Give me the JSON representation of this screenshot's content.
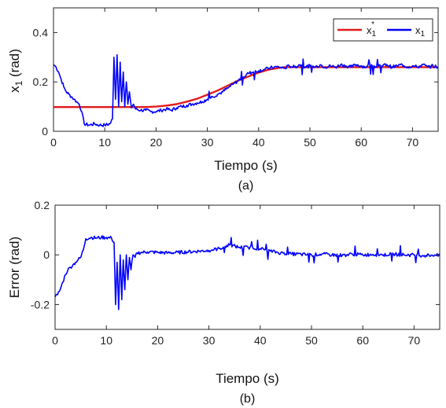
{
  "colors": {
    "reference": "#e31a1c",
    "measured": "#0000ff",
    "axis": "#262626",
    "grid": "#e6e6e6"
  },
  "chart_data": [
    {
      "id": "a",
      "type": "line",
      "caption": "(a)",
      "xlabel": "Tiempo (s)",
      "ylabel_main": "x",
      "ylabel_sub": "1",
      "ylabel_unit": " (rad)",
      "xlim": [
        0,
        75
      ],
      "ylim": [
        0,
        0.5
      ],
      "xticks": [
        0,
        10,
        20,
        30,
        40,
        50,
        60,
        70
      ],
      "xtick_labels": [
        "0",
        "10",
        "20",
        "30",
        "40",
        "50",
        "60",
        "70"
      ],
      "yticks": [
        0,
        0.2,
        0.4
      ],
      "ytick_labels": [
        "0",
        "0.2",
        "0.4"
      ],
      "grid": false,
      "legend_position": "top-right",
      "legend": [
        {
          "main": "x",
          "sub": "1",
          "sup": "*",
          "color_key": "reference"
        },
        {
          "main": "x",
          "sub": "1",
          "sup": "",
          "color_key": "measured"
        }
      ],
      "series": [
        {
          "color_key": "reference",
          "x": [
            0,
            18,
            20,
            22,
            24,
            26,
            28,
            30,
            32,
            34,
            36,
            38,
            40,
            42,
            44,
            45,
            46,
            75
          ],
          "y": [
            0.098,
            0.098,
            0.1,
            0.104,
            0.11,
            0.12,
            0.132,
            0.148,
            0.165,
            0.185,
            0.205,
            0.222,
            0.238,
            0.25,
            0.257,
            0.26,
            0.26,
            0.26
          ]
        },
        {
          "color_key": "measured",
          "x": [
            0,
            0.5,
            1,
            1.5,
            2,
            2.5,
            3,
            3.5,
            4,
            4.5,
            5,
            5.5,
            6,
            7,
            8,
            9,
            10,
            11,
            11.5,
            11.8,
            12.1,
            12.4,
            12.7,
            13.0,
            13.3,
            13.6,
            13.9,
            14.2,
            14.5,
            14.8,
            15.2,
            15.6,
            16,
            17,
            18,
            19,
            20,
            21,
            22,
            23,
            24,
            25,
            26,
            27,
            28,
            29,
            30,
            31,
            32,
            33,
            34,
            35,
            36,
            37,
            38,
            39,
            40,
            41,
            42,
            43,
            44,
            45,
            46,
            47,
            48,
            49,
            50,
            51,
            52,
            53,
            54,
            55,
            56,
            57,
            58,
            59,
            60,
            61,
            62,
            63,
            64,
            65,
            66,
            67,
            68,
            69,
            70,
            71,
            72,
            73,
            74,
            75
          ],
          "y": [
            0.27,
            0.26,
            0.24,
            0.21,
            0.18,
            0.16,
            0.15,
            0.14,
            0.13,
            0.12,
            0.11,
            0.08,
            0.03,
            0.025,
            0.03,
            0.025,
            0.025,
            0.03,
            0.05,
            0.3,
            0.13,
            0.31,
            0.1,
            0.28,
            0.12,
            0.24,
            0.1,
            0.2,
            0.11,
            0.16,
            0.095,
            0.11,
            0.09,
            0.085,
            0.085,
            0.08,
            0.08,
            0.085,
            0.09,
            0.085,
            0.095,
            0.1,
            0.105,
            0.11,
            0.115,
            0.12,
            0.13,
            0.14,
            0.15,
            0.16,
            0.175,
            0.19,
            0.205,
            0.22,
            0.235,
            0.24,
            0.245,
            0.25,
            0.255,
            0.26,
            0.26,
            0.255,
            0.265,
            0.26,
            0.27,
            0.26,
            0.265,
            0.26,
            0.27,
            0.26,
            0.265,
            0.26,
            0.27,
            0.265,
            0.26,
            0.27,
            0.265,
            0.26,
            0.27,
            0.26,
            0.265,
            0.27,
            0.26,
            0.265,
            0.27,
            0.26,
            0.265,
            0.26,
            0.27,
            0.26,
            0.265,
            0.26
          ]
        }
      ]
    },
    {
      "id": "b",
      "type": "line",
      "caption": "(b)",
      "xlabel": "Tiempo (s)",
      "ylabel_main": "Error (rad)",
      "xlim": [
        0,
        75
      ],
      "ylim": [
        -0.3,
        0.2
      ],
      "xticks": [
        0,
        10,
        20,
        30,
        40,
        50,
        60,
        70
      ],
      "xtick_labels": [
        "0",
        "10",
        "20",
        "30",
        "40",
        "50",
        "60",
        "70"
      ],
      "yticks": [
        -0.2,
        0,
        0.2
      ],
      "ytick_labels": [
        "-0.2",
        "0",
        "0.2"
      ],
      "grid": false,
      "series": [
        {
          "color_key": "measured",
          "x": [
            0,
            0.5,
            1,
            1.5,
            2,
            2.5,
            3,
            3.5,
            4,
            4.5,
            5,
            5.5,
            6,
            7,
            8,
            9,
            10,
            11,
            11.5,
            11.8,
            12.1,
            12.4,
            12.7,
            13.0,
            13.3,
            13.6,
            13.9,
            14.2,
            14.5,
            14.8,
            15.2,
            15.6,
            16,
            17,
            18,
            20,
            22,
            24,
            26,
            28,
            30,
            32,
            34,
            36,
            38,
            40,
            42,
            44,
            46,
            48,
            50,
            52,
            54,
            56,
            58,
            60,
            62,
            64,
            66,
            68,
            70,
            72,
            74,
            75
          ],
          "y": [
            -0.17,
            -0.16,
            -0.14,
            -0.11,
            -0.08,
            -0.06,
            -0.05,
            -0.04,
            -0.03,
            -0.02,
            -0.01,
            0.02,
            0.065,
            0.07,
            0.068,
            0.07,
            0.07,
            0.068,
            0.05,
            -0.2,
            -0.03,
            -0.22,
            0.0,
            -0.18,
            -0.02,
            -0.14,
            0.0,
            -0.1,
            -0.01,
            -0.06,
            0.0,
            -0.01,
            0.008,
            0.01,
            0.012,
            0.01,
            0.008,
            0.01,
            0.012,
            0.015,
            0.018,
            0.025,
            0.04,
            0.03,
            0.03,
            0.025,
            0.015,
            0.008,
            0.004,
            0.002,
            0.0,
            0.003,
            0.0,
            -0.002,
            0.003,
            0.0,
            0.002,
            0.0,
            0.003,
            0.0,
            0.0,
            -0.003,
            0.0,
            -0.005
          ]
        }
      ]
    }
  ]
}
